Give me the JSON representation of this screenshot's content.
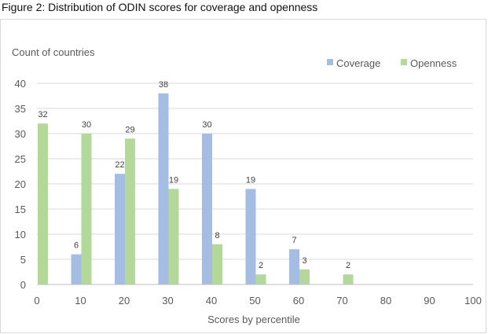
{
  "figure": {
    "title": "Figure 2: Distribution of ODIN scores for coverage and openness"
  },
  "chart_data": {
    "type": "bar",
    "title": "Figure 2: Distribution of ODIN scores for coverage and openness",
    "ylabel": "Count of countries",
    "xlabel": "Scores by percentile",
    "ylim": [
      0,
      40
    ],
    "yticks": [
      0,
      5,
      10,
      15,
      20,
      25,
      30,
      35,
      40
    ],
    "xticks": [
      0,
      10,
      20,
      30,
      40,
      50,
      60,
      70,
      80,
      90,
      100
    ],
    "xlim": [
      0,
      100
    ],
    "legend_position": "top-right",
    "gridlines": true,
    "colors": {
      "Coverage": "#a5bde2",
      "Openness": "#b3d89a"
    },
    "series": [
      {
        "name": "Coverage",
        "points": [
          {
            "x": 10,
            "y": 6
          },
          {
            "x": 20,
            "y": 22
          },
          {
            "x": 30,
            "y": 38
          },
          {
            "x": 40,
            "y": 30
          },
          {
            "x": 50,
            "y": 19
          },
          {
            "x": 60,
            "y": 7
          }
        ]
      },
      {
        "name": "Openness",
        "points": [
          {
            "x": 0,
            "y": 32
          },
          {
            "x": 10,
            "y": 30
          },
          {
            "x": 20,
            "y": 29
          },
          {
            "x": 30,
            "y": 19
          },
          {
            "x": 40,
            "y": 8
          },
          {
            "x": 50,
            "y": 2
          },
          {
            "x": 60,
            "y": 3
          },
          {
            "x": 70,
            "y": 2
          }
        ]
      }
    ]
  }
}
